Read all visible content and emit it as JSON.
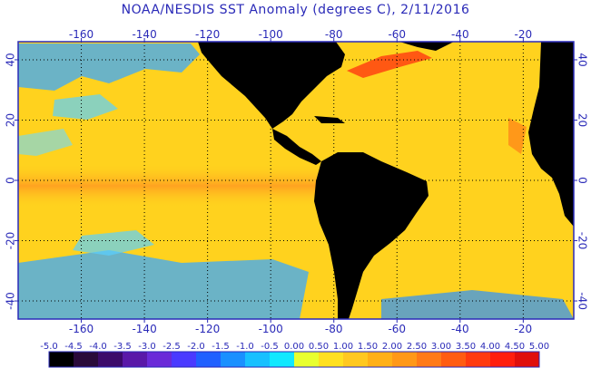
{
  "title": "NOAA/NESDIS SST Anomaly (degrees C), 2/11/2016",
  "map": {
    "lon_range": [
      -180,
      -4
    ],
    "lat_range": [
      -46,
      46
    ],
    "top_ticks": [
      "-160",
      "-140",
      "-120",
      "-100",
      "-80",
      "-60",
      "-40",
      "-20"
    ],
    "bottom_ticks": [
      "-160",
      "-140",
      "-120",
      "-100",
      "-80",
      "-60",
      "-40",
      "-20"
    ],
    "left_ticks": [
      "40",
      "20",
      "0",
      "-20",
      "-40"
    ],
    "right_ticks": [
      "40",
      "20",
      "0",
      "-20",
      "-40"
    ],
    "lon_tick_values": [
      -160,
      -140,
      -120,
      -100,
      -80,
      -60,
      -40,
      -20
    ],
    "lat_tick_values": [
      40,
      20,
      0,
      -20,
      -40
    ],
    "land_color": "#000000",
    "frame_color": "#2a2ab8",
    "grid": "dotted"
  },
  "colorbar": {
    "labels": [
      "-5.0",
      "-4.5",
      "-4.0",
      "-3.5",
      "-3.0",
      "-2.5",
      "-2.0",
      "-1.5",
      "-1.0",
      "-0.5",
      "0.00",
      "0.50",
      "1.00",
      "1.50",
      "2.00",
      "2.50",
      "3.00",
      "3.50",
      "4.00",
      "4.50",
      "5.00"
    ],
    "colors": [
      "#000000",
      "#2a0a3a",
      "#3c0a6a",
      "#5a18a8",
      "#6a2ad8",
      "#4a3aff",
      "#2060ff",
      "#1a90ff",
      "#18c0ff",
      "#10e8ff",
      "#e8ff30",
      "#ffe020",
      "#ffc820",
      "#ffb018",
      "#ff9818",
      "#ff7a18",
      "#ff5c12",
      "#ff3a10",
      "#ff1e0e",
      "#e00e0c"
    ]
  }
}
